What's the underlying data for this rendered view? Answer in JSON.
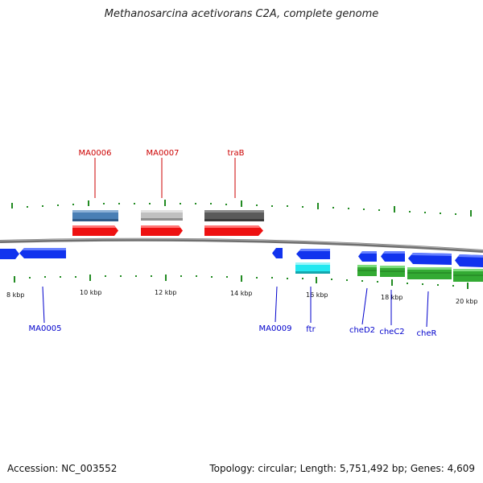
{
  "header": {
    "title": "Methanosarcina acetivorans C2A, complete genome"
  },
  "footer": {
    "accession": "Accession: NC_003552",
    "topology": "Topology: circular; Length: 5,751,492 bp; Genes: 4,609"
  },
  "ruler": {
    "labels": [
      "8 kbp",
      "10 kbp",
      "12 kbp",
      "14 kbp",
      "16 kbp",
      "18 kbp",
      "20 kbp"
    ]
  },
  "gene_labels": {
    "MA0006": "MA0006",
    "MA0007": "MA0007",
    "traB": "traB",
    "MA0005": "MA0005",
    "MA0009": "MA0009",
    "ftr": "ftr",
    "cheD2": "cheD2",
    "cheC2": "cheC2",
    "cheR": "cheR"
  },
  "colors": {
    "forward_gene": "#ee1111",
    "reverse_gene": "#1133ee",
    "cog_blue": "#4a7fb5",
    "cog_lightgray": "#c0c0c0",
    "cog_darkgray": "#5a5a5a",
    "cog_cyan": "#22e8f0",
    "cog_green": "#33aa33",
    "tick": "#228b22",
    "backbone": "#707070",
    "label_forward": "#cc0000",
    "label_reverse": "#0000cc"
  }
}
